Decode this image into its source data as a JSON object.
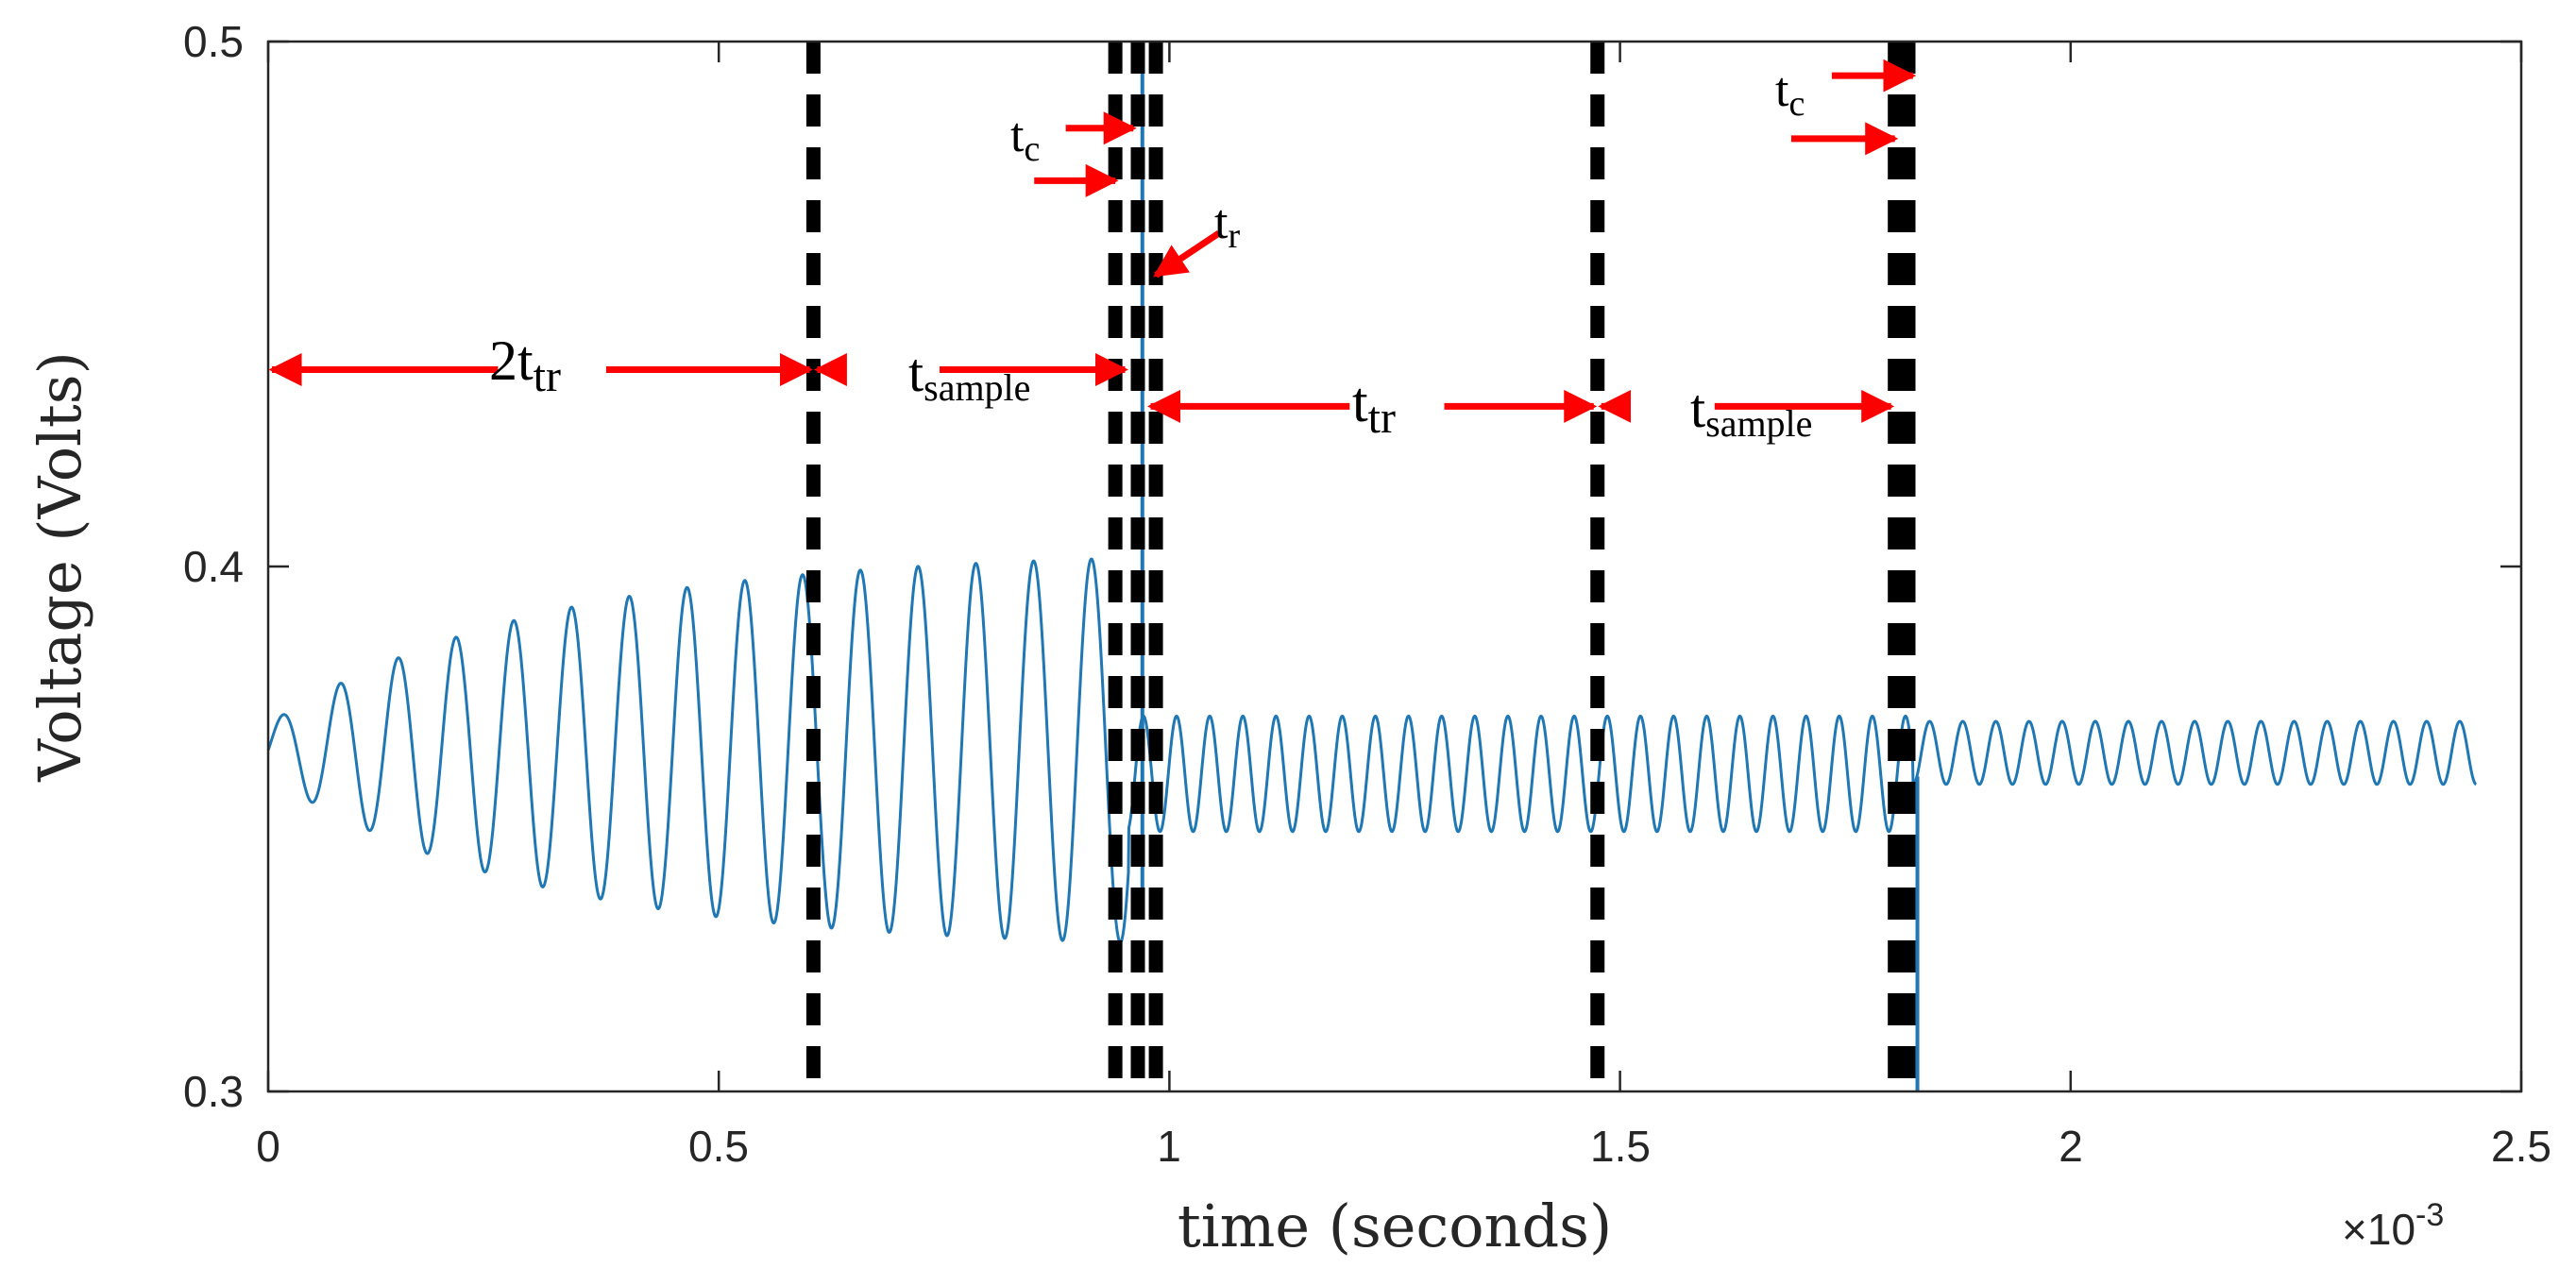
{
  "chart_data": {
    "type": "line",
    "xlabel": "time (seconds)",
    "ylabel": "Voltage (Volts)",
    "x_exponent_label": "×10",
    "x_exponent_power": "-3",
    "xlim": [
      0,
      2.5
    ],
    "ylim": [
      0.3,
      0.5
    ],
    "xticks": [
      0,
      0.5,
      1,
      1.5,
      2,
      2.5
    ],
    "xtick_labels": [
      "0",
      "0.5",
      "1",
      "1.5",
      "2",
      "2.5"
    ],
    "yticks": [
      0.3,
      0.4,
      0.5
    ],
    "ytick_labels": [
      "0.3",
      "0.4",
      "0.5"
    ],
    "grid": false,
    "series": [
      {
        "name": "voltage",
        "color": "#1f77b4",
        "segments": [
          {
            "t0": 0.0,
            "t1": 0.955,
            "offset": 0.365,
            "freq_khz": 15.6,
            "amplitude_start": 0.005,
            "amplitude_peak": 0.038,
            "rise_ms": 0.3
          },
          {
            "t0": 0.955,
            "t1": 1.825,
            "offset": 0.3605,
            "freq_khz": 27.2,
            "amplitude": 0.011
          },
          {
            "t0": 1.825,
            "t1": 2.45,
            "offset": 0.3645,
            "freq_khz": 27.2,
            "amplitude": 0.006
          }
        ],
        "transients": [
          {
            "t": 0.97,
            "from": 0.335,
            "to": 0.5
          },
          {
            "t": 1.83,
            "from": 0.3,
            "to": 0.36
          }
        ]
      }
    ],
    "dashed_markers_ms": [
      0.605,
      0.94,
      0.965,
      0.985,
      1.475,
      1.805,
      1.82
    ],
    "dashed_marker_color": "#000000",
    "annotation_color": "#ff0000",
    "annotations": [
      {
        "id": "2ttr",
        "base": "2t",
        "sub": "tr",
        "x0": 0.0,
        "x1": 0.605,
        "y": 0.4375
      },
      {
        "id": "tsample1",
        "base": "t",
        "sub": "sample",
        "x0": 0.605,
        "x1": 0.955,
        "y": 0.4375
      },
      {
        "id": "ttr",
        "base": "t",
        "sub": "tr",
        "x0": 0.975,
        "x1": 1.475,
        "y": 0.4305
      },
      {
        "id": "tsample2",
        "base": "t",
        "sub": "sample",
        "x0": 1.475,
        "x1": 1.805,
        "y": 0.4305
      },
      {
        "id": "tc1",
        "base": "t",
        "sub": "c"
      },
      {
        "id": "tr",
        "base": "t",
        "sub": "r"
      },
      {
        "id": "tc2",
        "base": "t",
        "sub": "c"
      }
    ]
  }
}
